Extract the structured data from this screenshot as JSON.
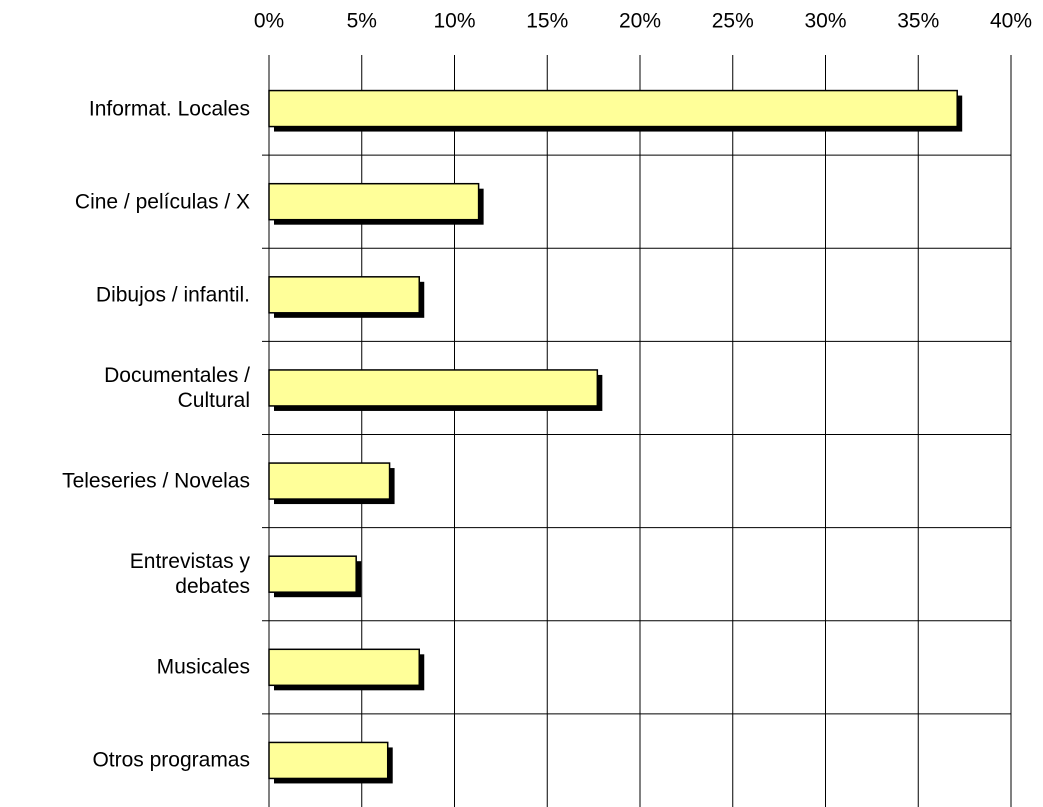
{
  "chart_data": {
    "type": "bar",
    "orientation": "horizontal",
    "categories": [
      "Informat. Locales",
      "Cine / películas / X",
      "Dibujos / infantil.",
      "Documentales /\nCultural",
      "Teleseries / Novelas",
      "Entrevistas y\ndebates",
      "Musicales",
      "Otros programas"
    ],
    "values": [
      37.1,
      11.3,
      8.1,
      17.7,
      6.5,
      4.7,
      8.1,
      6.4
    ],
    "color": "#ffff99",
    "xlim": [
      0,
      40
    ],
    "xticks": [
      {
        "value": 0,
        "label": "0%"
      },
      {
        "value": 5,
        "label": "5%"
      },
      {
        "value": 10,
        "label": "10%"
      },
      {
        "value": 15,
        "label": "15%"
      },
      {
        "value": 20,
        "label": "20%"
      },
      {
        "value": 25,
        "label": "25%"
      },
      {
        "value": 30,
        "label": "30%"
      },
      {
        "value": 35,
        "label": "35%"
      },
      {
        "value": 40,
        "label": "40%"
      }
    ],
    "grid": true
  }
}
